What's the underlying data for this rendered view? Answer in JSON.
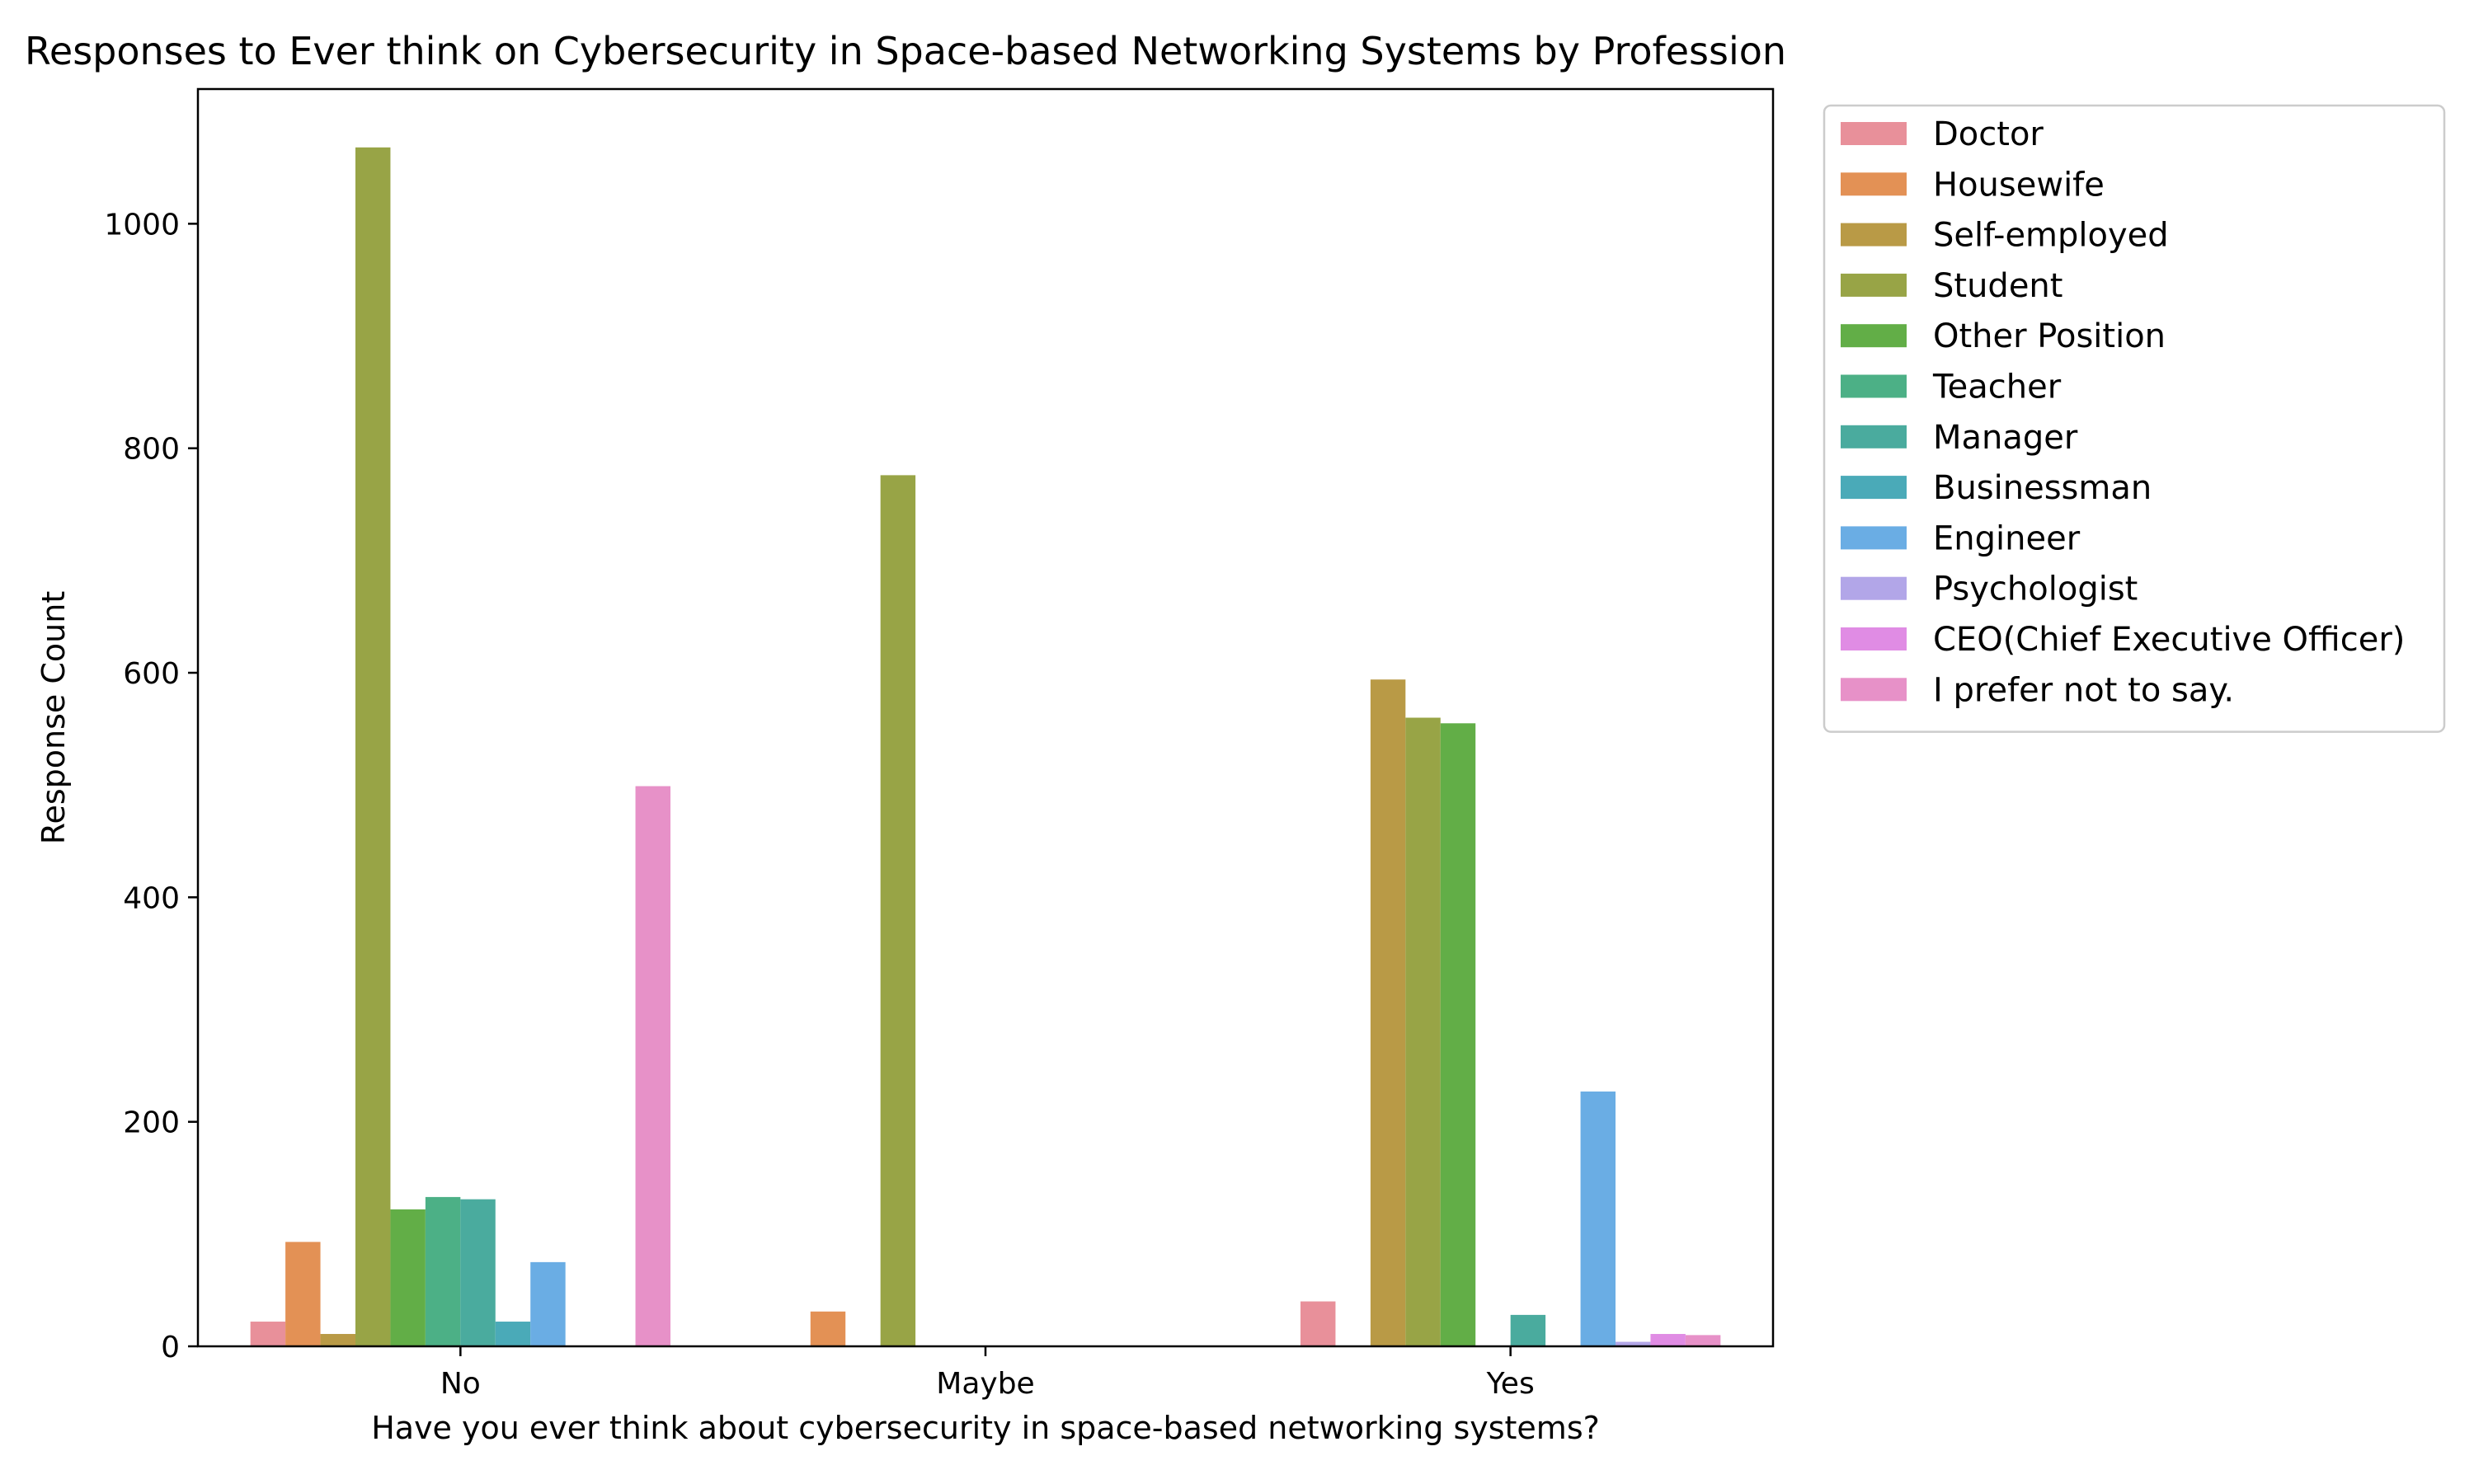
{
  "chart_data": {
    "type": "bar",
    "title": "Responses to Ever think on Cybersecurity in Space-based Networking Systems by Profession",
    "xlabel": "Have you ever think about cybersecurity in space-based networking systems?",
    "ylabel": "Response Count",
    "ylim": [
      0,
      1120
    ],
    "yticks": [
      0,
      200,
      400,
      600,
      800,
      1000
    ],
    "categories": [
      "No",
      "Maybe",
      "Yes"
    ],
    "legend_position": "outside-top-right",
    "grid": false,
    "series": [
      {
        "name": "Doctor",
        "color": "#e8909a",
        "values": [
          22,
          0,
          40
        ]
      },
      {
        "name": "Housewife",
        "color": "#e39155",
        "values": [
          93,
          31,
          0
        ]
      },
      {
        "name": "Self-employed",
        "color": "#b99a46",
        "values": [
          11,
          0,
          594
        ]
      },
      {
        "name": "Student",
        "color": "#98a446",
        "values": [
          1068,
          776,
          560
        ]
      },
      {
        "name": "Other Position",
        "color": "#62ae47",
        "values": [
          122,
          0,
          555
        ]
      },
      {
        "name": "Teacher",
        "color": "#4cb086",
        "values": [
          133,
          0,
          0
        ]
      },
      {
        "name": "Manager",
        "color": "#4aab9e",
        "values": [
          131,
          0,
          28
        ]
      },
      {
        "name": "Businessman",
        "color": "#4aaab8",
        "values": [
          22,
          0,
          0
        ]
      },
      {
        "name": "Engineer",
        "color": "#6aade4",
        "values": [
          75,
          0,
          227
        ]
      },
      {
        "name": "Psychologist",
        "color": "#b2a6e8",
        "values": [
          0,
          0,
          4
        ]
      },
      {
        "name": "CEO(Chief Executive Officer)",
        "color": "#e08ce4",
        "values": [
          0,
          0,
          11
        ]
      },
      {
        "name": "I prefer not to say.",
        "color": "#e791c8",
        "values": [
          499,
          0,
          10
        ]
      }
    ]
  }
}
